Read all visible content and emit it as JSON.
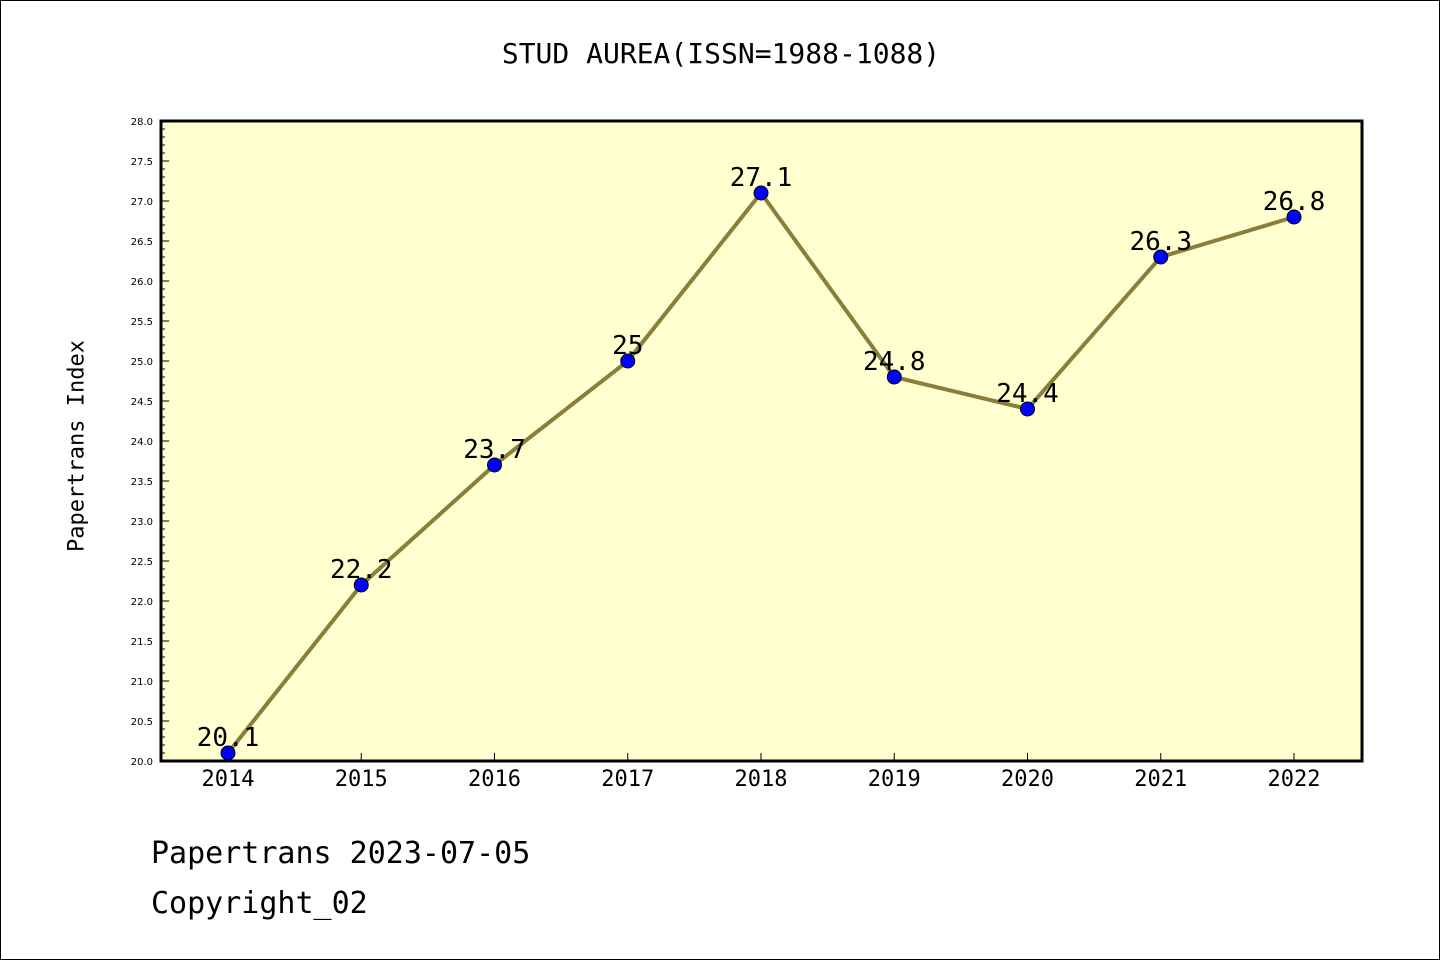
{
  "page": {
    "footer_line1": "Papertrans 2023-07-05",
    "footer_line2": "Copyright_02"
  },
  "colors": {
    "plot_background": "#ffffd0",
    "line": "#8b7d3a",
    "marker": "#0000ff",
    "axis": "#000000"
  },
  "chart_data": {
    "type": "line",
    "title": "STUD AUREA(ISSN=1988-1088)",
    "xlabel": "",
    "ylabel": "Papertrans Index",
    "categories": [
      "2014",
      "2015",
      "2016",
      "2017",
      "2018",
      "2019",
      "2020",
      "2021",
      "2022"
    ],
    "series": [
      {
        "values": [
          20.1,
          22.2,
          23.7,
          25,
          27.1,
          24.8,
          24.4,
          26.3,
          26.8
        ],
        "labels": [
          "20.1",
          "22.2",
          "23.7",
          "25",
          "27.1",
          "24.8",
          "24.4",
          "26.3",
          "26.8"
        ]
      }
    ],
    "ylim": [
      20.0,
      28.0
    ],
    "yticks": [
      "20.0",
      "20.5",
      "21.0",
      "21.5",
      "22.0",
      "22.5",
      "23.0",
      "23.5",
      "24.0",
      "24.5",
      "25.0",
      "25.5",
      "26.0",
      "26.5",
      "27.0",
      "27.5",
      "28.0"
    ],
    "grid": false,
    "legend": "none"
  }
}
